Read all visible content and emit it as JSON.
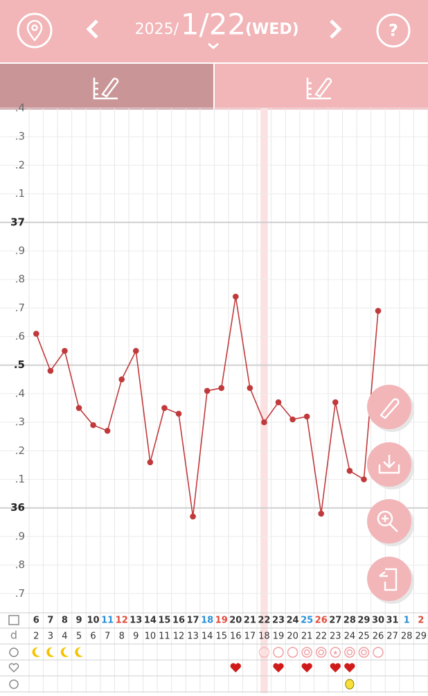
{
  "header": {
    "year": "2025/",
    "date": "1/22",
    "weekday": "(WED)"
  },
  "chart_data": {
    "type": "line",
    "categories": [
      "6",
      "7",
      "8",
      "9",
      "10",
      "11",
      "12",
      "13",
      "14",
      "15",
      "16",
      "17",
      "18",
      "19",
      "20",
      "21",
      "22",
      "23",
      "24",
      "25",
      "26",
      "27",
      "28",
      "29",
      "30",
      "31",
      "1",
      "2"
    ],
    "category_colors": [
      "#333",
      "#333",
      "#333",
      "#333",
      "#333",
      "#2a8fd6",
      "#e04a3a",
      "#333",
      "#333",
      "#333",
      "#333",
      "#333",
      "#2a8fd6",
      "#e04a3a",
      "#333",
      "#333",
      "#333",
      "#333",
      "#333",
      "#2a8fd6",
      "#e04a3a",
      "#333",
      "#333",
      "#333",
      "#333",
      "#333",
      "#2a8fd6",
      "#e04a3a"
    ],
    "highlight_category": 16,
    "color": "#c0393b",
    "values": [
      36.61,
      36.48,
      36.55,
      36.35,
      36.29,
      36.27,
      36.45,
      36.55,
      36.16,
      36.35,
      36.33,
      35.97,
      36.41,
      36.42,
      36.74,
      36.42,
      36.3,
      36.37,
      36.31,
      36.32,
      35.98,
      36.37,
      36.13,
      36.1,
      36.69,
      null,
      null,
      null
    ],
    "ylim": [
      35.64,
      37.4
    ],
    "yticks": [
      {
        "value": 35.7,
        "label": ".7"
      },
      {
        "value": 35.8,
        "label": ".8"
      },
      {
        "value": 35.9,
        "label": ".9"
      },
      36,
      {
        "value": 36.1,
        "label": ".1"
      },
      {
        "value": 36.2,
        "label": ".2"
      },
      {
        "value": 36.3,
        "label": ".3"
      },
      {
        "value": 36.4,
        "label": ".4"
      },
      {
        "value": 36.5,
        "label": ".5"
      },
      {
        "value": 36.6,
        "label": ".6"
      },
      {
        "value": 36.7,
        "label": ".7"
      },
      {
        "value": 36.8,
        "label": ".8"
      },
      {
        "value": 36.9,
        "label": ".9"
      },
      37,
      {
        "value": 37.1,
        "label": ".1"
      },
      {
        "value": 37.2,
        "label": ".2"
      },
      {
        "value": 37.3,
        "label": ".3"
      },
      {
        "value": 37.4,
        "label": ".4"
      }
    ],
    "grid": true
  },
  "cycle_day_label": "d",
  "cycle_days": [
    2,
    3,
    4,
    5,
    6,
    7,
    8,
    9,
    10,
    11,
    12,
    13,
    14,
    15,
    16,
    17,
    18,
    19,
    20,
    21,
    22,
    23,
    24,
    25,
    26,
    27,
    28,
    29
  ]
}
